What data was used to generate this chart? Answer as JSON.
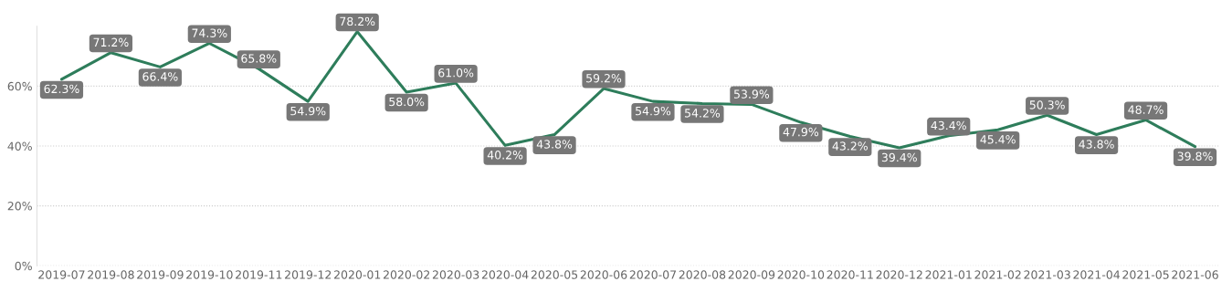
{
  "chart_data": {
    "type": "line",
    "categories": [
      "2019-07",
      "2019-08",
      "2019-09",
      "2019-10",
      "2019-11",
      "2019-12",
      "2020-01",
      "2020-02",
      "2020-03",
      "2020-04",
      "2020-05",
      "2020-06",
      "2020-07",
      "2020-08",
      "2020-09",
      "2020-10",
      "2020-11",
      "2020-12",
      "2021-01",
      "2021-02",
      "2021-03",
      "2021-04",
      "2021-05",
      "2021-06"
    ],
    "series": [
      {
        "color": "#2e7d5b",
        "values": [
          62.3,
          71.2,
          66.4,
          74.3,
          65.8,
          54.9,
          78.2,
          58.0,
          61.0,
          40.2,
          43.8,
          59.2,
          54.9,
          54.2,
          53.9,
          47.9,
          43.2,
          39.4,
          43.4,
          45.4,
          50.3,
          43.8,
          48.7,
          39.8
        ],
        "value_labels": [
          "62.3%",
          "71.2%",
          "66.4%",
          "74.3%",
          "65.8%",
          "54.9%",
          "78.2%",
          "58.0%",
          "61.0%",
          "40.2%",
          "43.8%",
          "59.2%",
          "54.9%",
          "54.2%",
          "53.9%",
          "47.9%",
          "43.2%",
          "39.4%",
          "43.4%",
          "45.4%",
          "50.3%",
          "43.8%",
          "48.7%",
          "39.8%"
        ]
      }
    ],
    "yticks": [
      {
        "value": 0,
        "label": "0%"
      },
      {
        "value": 20,
        "label": "20%"
      },
      {
        "value": 40,
        "label": "40%"
      },
      {
        "value": 60,
        "label": "60%"
      }
    ],
    "ylim": [
      0,
      80
    ],
    "grid": "y",
    "legend": false,
    "marker": "none",
    "line_style": "solid"
  }
}
